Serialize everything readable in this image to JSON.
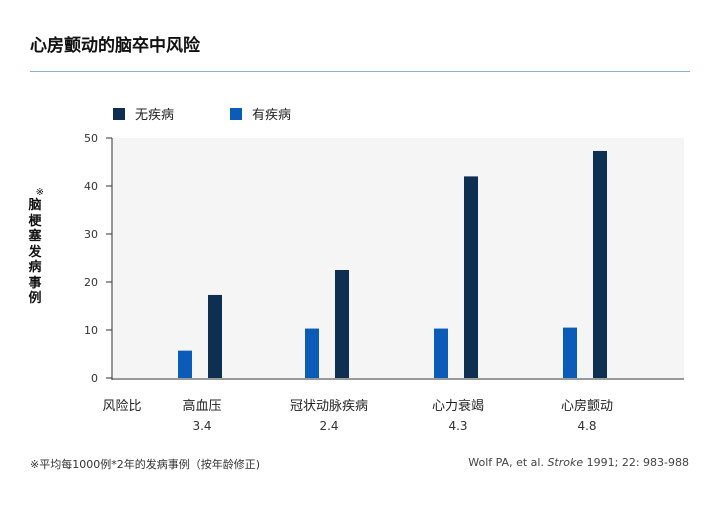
{
  "page": {
    "title": "心房颤动的脑卒中风险",
    "footnote": "※平均每1000例*2年的发病事例（按年龄修正)",
    "citation": {
      "authors": "Wolf PA, et al.",
      "journal": "Stroke",
      "details": "1991; 22: 983-988"
    }
  },
  "chart_data": {
    "type": "bar",
    "ylabel_mark": "※",
    "ylabel": "脑梗塞发病事例",
    "ylim": [
      0,
      50
    ],
    "yticks": [
      0,
      10,
      20,
      30,
      40,
      50
    ],
    "grid": false,
    "legend_position": "top-left",
    "ratio_label": "风险比",
    "categories": [
      "高血压",
      "冠状动脉疾病",
      "心力衰竭",
      "心房颤动"
    ],
    "ratios": [
      "3.4",
      "2.4",
      "4.3",
      "4.8"
    ],
    "series": [
      {
        "name": "有疾病",
        "color": "#0a5cb8",
        "values": [
          5.7,
          10.3,
          10.3,
          10.5
        ]
      },
      {
        "name": "无疾病",
        "color": "#0e2e52",
        "values": [
          17.3,
          22.5,
          42.0,
          47.3
        ]
      }
    ],
    "legend_order": [
      1,
      0
    ]
  }
}
